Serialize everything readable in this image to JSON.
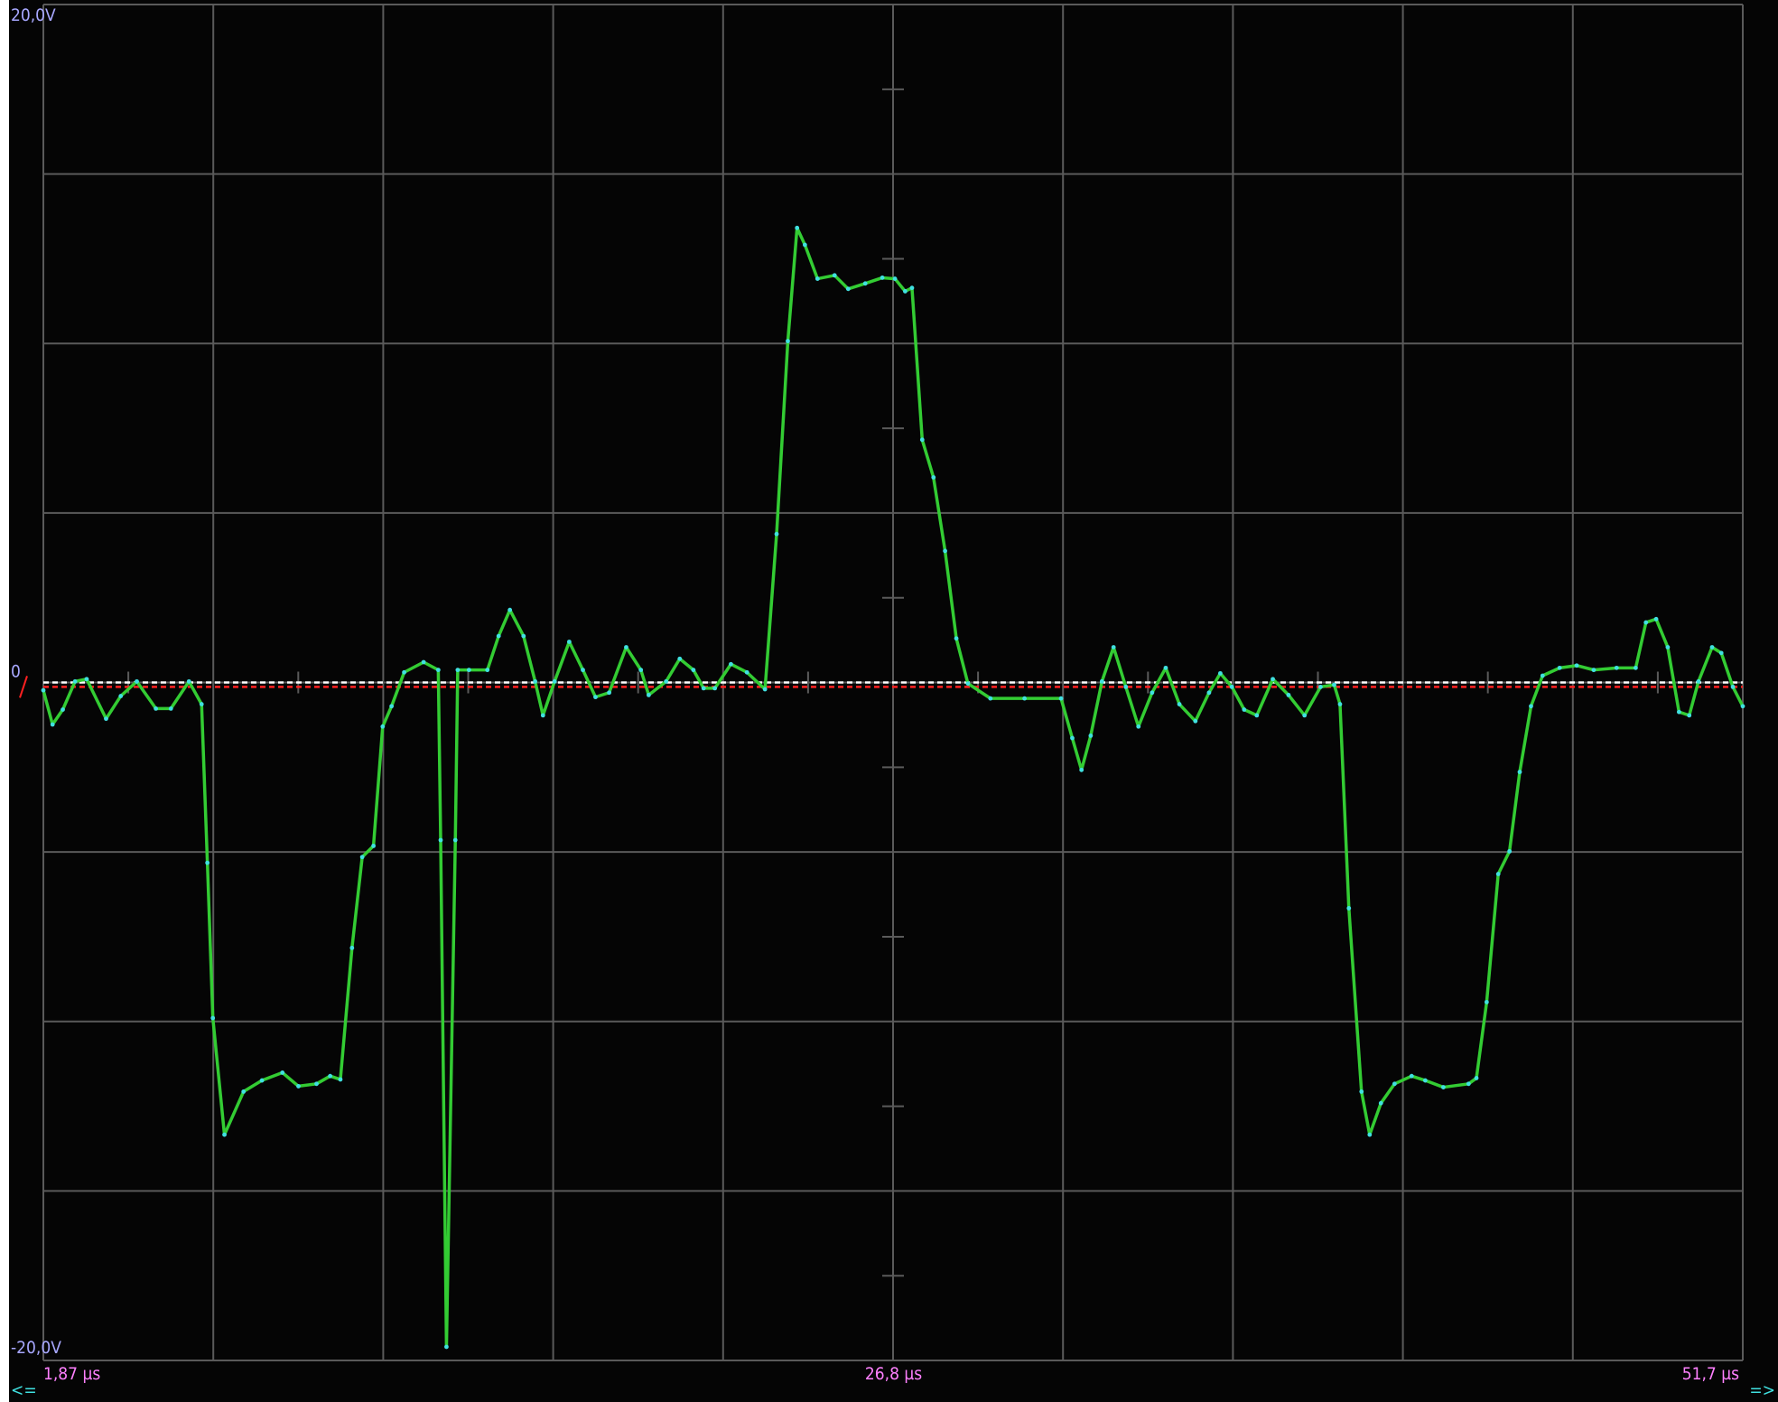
{
  "chart_data": {
    "type": "line",
    "x": [
      1.87,
      2.14,
      2.44,
      2.8,
      3.14,
      3.71,
      4.14,
      4.61,
      5.17,
      5.61,
      6.14,
      6.51,
      6.68,
      6.84,
      7.18,
      7.74,
      8.28,
      8.88,
      9.35,
      9.88,
      10.28,
      10.58,
      10.92,
      11.22,
      11.55,
      11.82,
      12.08,
      12.45,
      13.02,
      13.45,
      13.52,
      13.69,
      13.95,
      14.02,
      14.35,
      14.89,
      15.22,
      15.55,
      15.95,
      16.29,
      16.52,
      16.86,
      17.29,
      17.69,
      18.06,
      18.46,
      18.96,
      19.39,
      19.62,
      20.13,
      20.53,
      20.93,
      21.23,
      21.56,
      22.03,
      22.5,
      23.03,
      23.37,
      23.7,
      23.97,
      24.2,
      24.57,
      25.07,
      25.47,
      25.97,
      26.47,
      26.84,
      27.14,
      27.34,
      27.64,
      27.97,
      28.31,
      28.64,
      28.98,
      29.64,
      30.64,
      31.71,
      32.04,
      32.31,
      32.58,
      32.91,
      33.25,
      33.61,
      33.98,
      34.38,
      34.78,
      35.18,
      35.65,
      36.05,
      36.38,
      36.72,
      37.08,
      37.45,
      37.92,
      38.38,
      38.85,
      39.32,
      39.72,
      39.89,
      40.15,
      40.52,
      40.76,
      41.09,
      41.49,
      41.99,
      42.39,
      42.92,
      43.66,
      43.89,
      44.19,
      44.53,
      44.86,
      45.16,
      45.49,
      45.83,
      46.33,
      46.83,
      47.33,
      48.0,
      48.56,
      48.86,
      49.16,
      49.5,
      49.83,
      50.13,
      50.4,
      50.8,
      51.07,
      51.41,
      51.7
    ],
    "series": [
      {
        "color": "#33cc33",
        "marker_color": "#40e0e0",
        "values": [
          -0.23,
          -1.24,
          -0.8,
          0.03,
          0.1,
          -1.07,
          -0.4,
          0.03,
          -0.77,
          -0.77,
          0.03,
          -0.64,
          -5.32,
          -9.9,
          -13.34,
          -12.07,
          -11.74,
          -11.51,
          -11.91,
          -11.84,
          -11.61,
          -11.71,
          -7.83,
          -5.15,
          -4.82,
          -1.3,
          -0.7,
          0.3,
          0.6,
          0.37,
          -4.65,
          -19.6,
          -4.65,
          0.37,
          0.37,
          0.37,
          1.37,
          2.14,
          1.37,
          0.03,
          -0.97,
          0.03,
          1.2,
          0.37,
          -0.43,
          -0.3,
          1.04,
          0.37,
          -0.37,
          0.03,
          0.7,
          0.37,
          -0.17,
          -0.17,
          0.54,
          0.3,
          -0.2,
          4.38,
          10.07,
          13.41,
          12.91,
          11.91,
          12.01,
          11.61,
          11.77,
          11.94,
          11.91,
          11.54,
          11.64,
          7.16,
          6.05,
          3.88,
          1.3,
          -0.03,
          -0.47,
          -0.47,
          -0.47,
          -1.64,
          -2.58,
          -1.57,
          0.03,
          1.04,
          -0.13,
          -1.3,
          -0.3,
          0.43,
          -0.64,
          -1.14,
          -0.3,
          0.27,
          -0.13,
          -0.8,
          -0.97,
          0.1,
          -0.37,
          -0.97,
          -0.13,
          -0.07,
          -0.64,
          -6.66,
          -12.07,
          -13.34,
          -12.41,
          -11.84,
          -11.61,
          -11.74,
          -11.94,
          -11.84,
          -11.67,
          -9.43,
          -5.65,
          -4.98,
          -2.64,
          -0.7,
          0.2,
          0.43,
          0.5,
          0.37,
          0.43,
          0.43,
          1.77,
          1.87,
          1.04,
          -0.87,
          -0.97,
          0.03,
          1.04,
          0.87,
          -0.13,
          -0.7
        ]
      }
    ],
    "xlim": [
      1.87,
      51.7
    ],
    "ylim": [
      -20,
      20
    ],
    "xticks": [
      {
        "value": 1.87,
        "label": "1,87 µs"
      },
      {
        "value": 26.8,
        "label": "26,8 µs"
      },
      {
        "value": 51.7,
        "label": "51,7 µs"
      }
    ],
    "yticks": [
      {
        "value": 20,
        "label": "20,0V"
      },
      0,
      {
        "value": -20,
        "label": "-20,0V"
      }
    ],
    "reference_lines": [
      {
        "value": 0,
        "color": "#ffffff"
      },
      {
        "value": -0.13,
        "color": "#ff2020"
      }
    ],
    "grid": true
  },
  "controls": {
    "left": "<=",
    "right": "=>"
  }
}
